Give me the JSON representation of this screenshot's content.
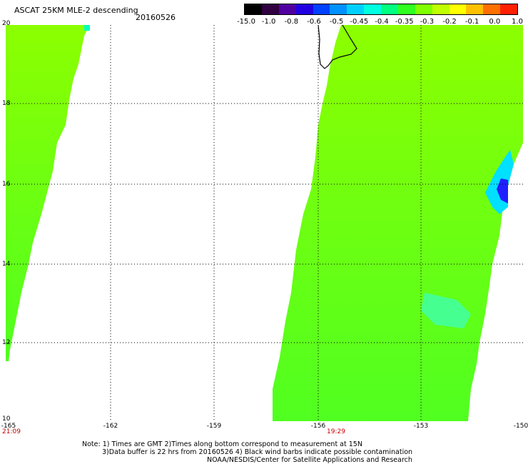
{
  "title_line1": "ASCAT 25KM MLE-2 descending",
  "title_line2": "20160526",
  "colorbar": {
    "labels": [
      "-15.0",
      "-1.0",
      "-0.8",
      "-0.6",
      "-0.5",
      "-0.45",
      "-0.4",
      "-0.35",
      "-0.3",
      "-0.2",
      "-0.1",
      "0.0",
      "1.0"
    ],
    "colors": [
      "#000000",
      "#300040",
      "#5000a0",
      "#2000e0",
      "#0040ff",
      "#0090ff",
      "#00d0ff",
      "#00ffe0",
      "#00ff80",
      "#30ff20",
      "#80ff00",
      "#c0ff00",
      "#ffff00",
      "#ffc000",
      "#ff7000",
      "#ff2000"
    ]
  },
  "axes": {
    "y_ticks": [
      "20",
      "18",
      "16",
      "14",
      "12",
      "10"
    ],
    "x_ticks": [
      "-165",
      "-162",
      "-159",
      "-156",
      "-153",
      "-150"
    ],
    "xlim": [
      -165,
      -150
    ],
    "ylim": [
      10,
      20
    ]
  },
  "times": [
    "21:09",
    "19:29"
  ],
  "notes": [
    "Note: 1) Times are GMT 2)Times along bottom correspond to measurement at 15N",
    "3)Data buffer is 22 hrs from 20160526 4) Black wind barbs indicate possible contamination",
    "NOAA/NESDIS/Center for Satellite Applications and Research"
  ]
}
